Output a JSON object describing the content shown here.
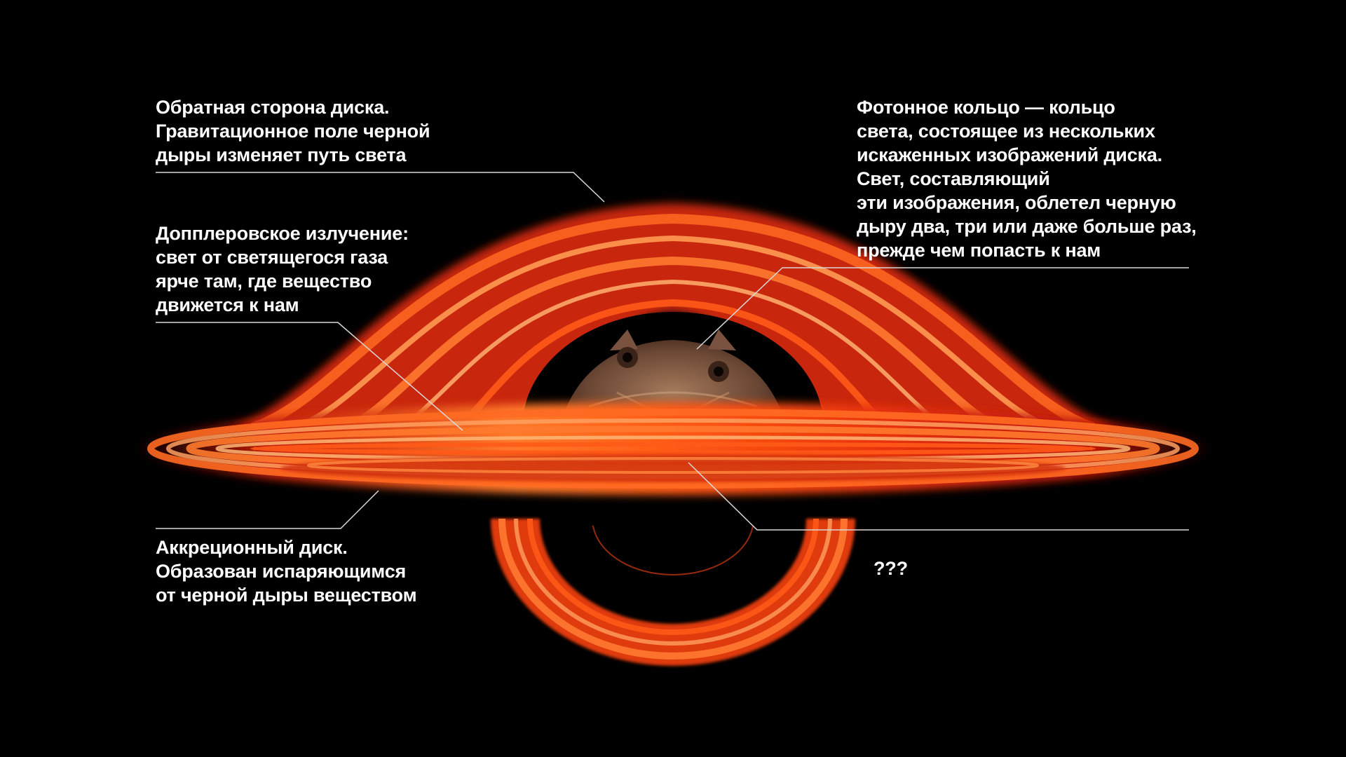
{
  "colors": {
    "background": "#000000",
    "disk_bright": "#ff6a1a",
    "disk_hot": "#ffb070",
    "disk_dark": "#a81404",
    "leader_line": "#d8d8d8"
  },
  "labels": {
    "back_side": {
      "lines": [
        "Обратная сторона диска.",
        "Гравитационное поле черной",
        "дыры изменяет путь света"
      ]
    },
    "doppler": {
      "lines": [
        "Допплеровское излучение:",
        "свет от светящегося газа",
        "ярче там, где вещество",
        "движется к нам"
      ]
    },
    "accretion_disk": {
      "lines": [
        "Аккреционный диск.",
        "Образован испаряющимся",
        "от черной дыры веществом"
      ]
    },
    "photon_ring": {
      "lines": [
        "Фотонное кольцо — кольцо",
        "света, состоящее из нескольких",
        "искаженных изображений диска.",
        "Свет, составляющий",
        "эти изображения, облетел черную",
        "дыру два, три или даже больше раз,",
        "прежде чем попасть к нам"
      ]
    },
    "unknown": {
      "text": "???"
    }
  },
  "center_figure": {
    "icon": "horned-frog-icon"
  }
}
